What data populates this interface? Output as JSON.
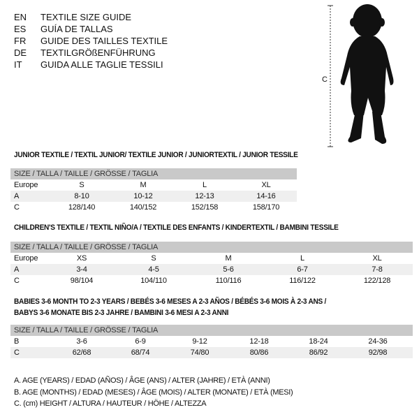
{
  "languages": [
    {
      "code": "EN",
      "title": "TEXTILE SIZE GUIDE"
    },
    {
      "code": "ES",
      "title": "GUÍA DE TALLAS"
    },
    {
      "code": "FR",
      "title": "GUIDE DES TAILLES TEXTILE"
    },
    {
      "code": "DE",
      "title": "TEXTILGRÖßENFÜHRUNG"
    },
    {
      "code": "IT",
      "title": "GUIDA ALLE TAGLIE TESSILI"
    }
  ],
  "figure": {
    "label": "C"
  },
  "junior": {
    "title": "JUNIOR TEXTILE / TEXTIL JUNIOR/ TEXTILE JUNIOR / JUNIORTEXTIL / JUNIOR TESSILE",
    "header": "SIZE / TALLA / TAILLE / GRÖSSE / TAGLIA",
    "rows": [
      {
        "label": "Europe",
        "values": [
          "S",
          "M",
          "L",
          "XL"
        ]
      },
      {
        "label": "A",
        "values": [
          "8-10",
          "10-12",
          "12-13",
          "14-16"
        ]
      },
      {
        "label": "C",
        "values": [
          "128/140",
          "140/152",
          "152/158",
          "158/170"
        ]
      }
    ]
  },
  "children": {
    "title": "CHILDREN'S TEXTILE / TEXTIL NIÑO/A / TEXTILE DES ENFANTS / KINDERTEXTIL / BAMBINI TESSILE",
    "header": "SIZE / TALLA / TAILLE / GRÖSSE / TAGLIA",
    "rows": [
      {
        "label": "Europe",
        "values": [
          "XS",
          "S",
          "M",
          "L",
          "XL"
        ]
      },
      {
        "label": "A",
        "values": [
          "3-4",
          "4-5",
          "5-6",
          "6-7",
          "7-8"
        ]
      },
      {
        "label": "C",
        "values": [
          "98/104",
          "104/110",
          "110/116",
          "116/122",
          "122/128"
        ]
      }
    ]
  },
  "babies": {
    "title_line1": "BABIES 3-6 MONTH TO 2-3 YEARS / BEBÉS 3-6 MESES A 2-3 AÑOS / BÉBÉS 3-6 MOIS À 2-3 ANS /",
    "title_line2": "BABYS 3-6 MONATE BIS 2-3 JAHRE / BAMBINI 3-6 MESI A 2-3 ANNI",
    "header": "SIZE / TALLA / TAILLE / GRÖSSE / TAGLIA",
    "rows": [
      {
        "label": "B",
        "values": [
          "3-6",
          "6-9",
          "9-12",
          "12-18",
          "18-24",
          "24-36"
        ]
      },
      {
        "label": "C",
        "values": [
          "62/68",
          "68/74",
          "74/80",
          "80/86",
          "86/92",
          "92/98"
        ]
      }
    ]
  },
  "legend": [
    "A. AGE (YEARS) / EDAD (AÑOS) / ÂGE (ANS) / ALTER (JAHRE) / ETÀ (ANNI)",
    "B. AGE (MONTHS) / EDAD (MESES) / ÂGE (MOIS) / ALTER (MONATE) / ETÀ (MESI)",
    "C. (cm) HEIGHT / ALTURA / HAUTEUR / HÖHE / ALTEZZA"
  ]
}
